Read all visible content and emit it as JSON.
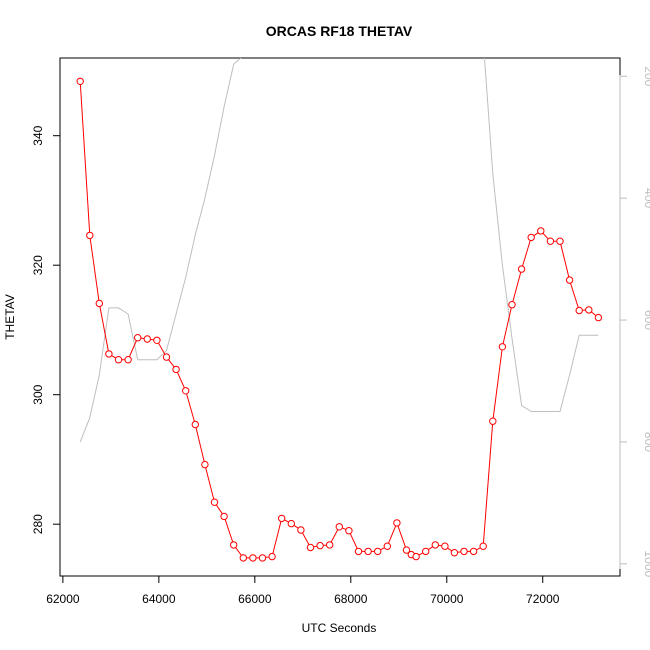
{
  "chart_data": {
    "type": "line",
    "title": "ORCAS RF18 THETAV",
    "xlabel": "UTC Seconds",
    "ylabel": "THETAV",
    "xlim": [
      61940,
      73610
    ],
    "ylim": [
      272,
      352
    ],
    "xticks": [
      62000,
      64000,
      66000,
      68000,
      70000,
      72000
    ],
    "yticks": [
      280,
      300,
      320,
      340
    ],
    "y2lim": [
      1020,
      170
    ],
    "y2ticks": [
      200,
      400,
      600,
      800,
      1000
    ],
    "series": [
      {
        "color": "#ff0000",
        "marker": "open-circle",
        "x": [
          62360,
          62560,
          62760,
          62960,
          63160,
          63360,
          63560,
          63760,
          63960,
          64160,
          64360,
          64560,
          64760,
          64960,
          65160,
          65360,
          65560,
          65760,
          65960,
          66160,
          66360,
          66560,
          66760,
          66960,
          67160,
          67360,
          67560,
          67760,
          67960,
          68160,
          68360,
          68560,
          68760,
          68960,
          69160,
          69260,
          69360,
          69560,
          69760,
          69960,
          70160,
          70360,
          70560,
          70760,
          70960,
          71160,
          71360,
          71560,
          71760,
          71960,
          72160,
          72360,
          72560,
          72760,
          72960,
          73160
        ],
        "y": [
          348.4,
          324.6,
          314.1,
          306.3,
          305.4,
          305.4,
          308.8,
          308.6,
          308.4,
          305.8,
          303.9,
          300.6,
          295.4,
          289.2,
          283.4,
          281.2,
          276.8,
          274.8,
          274.8,
          274.8,
          275.0,
          280.9,
          280.1,
          279.1,
          276.4,
          276.7,
          276.8,
          279.6,
          279.0,
          275.8,
          275.8,
          275.8,
          276.6,
          280.2,
          276.0,
          275.3,
          275.0,
          275.8,
          276.8,
          276.6,
          275.6,
          275.8,
          275.8,
          276.6,
          295.9,
          307.4,
          313.9,
          319.4,
          324.3,
          325.3,
          323.7,
          323.7,
          317.7,
          313.0,
          313.1,
          311.9
        ]
      },
      {
        "axis": "right",
        "color": "#bebebe",
        "marker": "none",
        "x": [
          62360,
          62560,
          62760,
          62960,
          63160,
          63360,
          63560,
          63760,
          63960,
          64160,
          64360,
          64560,
          64760,
          64960,
          65160,
          65360,
          65560,
          66000,
          66560,
          66760,
          66960,
          67500,
          68000,
          68500,
          68660,
          69000,
          70000,
          70760,
          70960,
          71160,
          71360,
          71560,
          71760,
          71960,
          72160,
          72360,
          72560,
          72760,
          72960,
          73160
        ],
        "y": [
          800,
          760,
          690,
          580,
          580,
          590,
          665,
          665,
          665,
          650,
          590,
          530,
          460,
          400,
          330,
          250,
          180,
          150,
          152,
          152,
          140,
          140,
          140,
          140,
          152,
          140,
          140,
          140,
          360,
          510,
          630,
          740,
          750,
          750,
          750,
          750,
          690,
          625,
          625,
          625
        ]
      }
    ]
  }
}
